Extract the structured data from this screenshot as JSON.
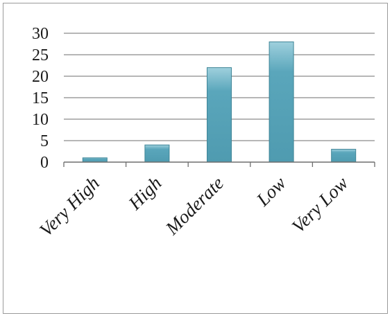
{
  "chart_data": {
    "type": "bar",
    "title": "",
    "xlabel": "",
    "ylabel": "",
    "categories": [
      "Very High",
      "High",
      "Moderate",
      "Low",
      "Very Low"
    ],
    "values": [
      1,
      4,
      22,
      28,
      3
    ],
    "ylim": [
      0,
      30
    ],
    "yticks": [
      "0",
      "5",
      "10",
      "15",
      "20",
      "25",
      "30"
    ],
    "grid": true,
    "legend": "none",
    "bar_color": "#5aa6bb",
    "bar_highlight": "#9fd0dd",
    "bar_edge": "#3f8597"
  }
}
